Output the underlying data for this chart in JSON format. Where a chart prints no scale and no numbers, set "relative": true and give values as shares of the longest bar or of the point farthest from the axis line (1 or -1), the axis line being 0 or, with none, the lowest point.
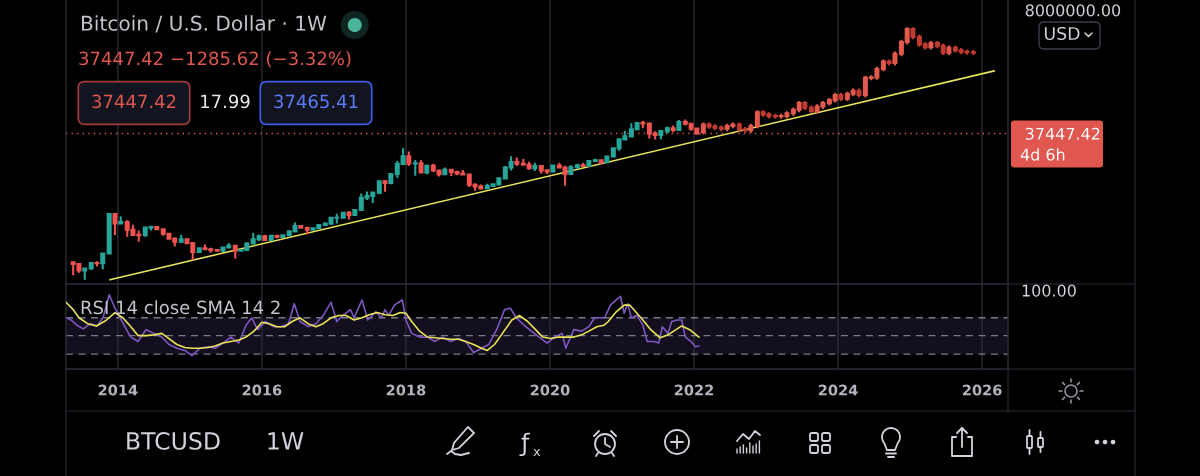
{
  "chart_data": [
    {
      "type": "candlestick",
      "title": "Bitcoin / U.S. Dollar · 1W",
      "subtitle": "37447.42 −1285.62 (−3.32%)",
      "series": [
        {
          "x": [
            2013.38,
            2013.46,
            2013.54,
            2013.63,
            2013.71,
            2013.79,
            2013.88,
            2013.96,
            2014.04,
            2014.13,
            2014.21,
            2014.29,
            2014.38,
            2014.46,
            2014.54,
            2014.63,
            2014.71,
            2014.79,
            2014.88,
            2014.96,
            2015.04,
            2015.13,
            2015.21,
            2015.29,
            2015.38,
            2015.46,
            2015.54,
            2015.63,
            2015.71,
            2015.79,
            2015.88,
            2015.96,
            2016.04,
            2016.13,
            2016.21,
            2016.29,
            2016.38,
            2016.46,
            2016.54,
            2016.63,
            2016.71,
            2016.79,
            2016.88,
            2016.96,
            2017.04,
            2017.13,
            2017.21,
            2017.29,
            2017.38,
            2017.46,
            2017.54,
            2017.63,
            2017.71,
            2017.79,
            2017.88,
            2017.96,
            2018.04,
            2018.13,
            2018.21,
            2018.29,
            2018.38,
            2018.46,
            2018.54,
            2018.63,
            2018.71,
            2018.79,
            2018.88,
            2018.96,
            2019.04,
            2019.13,
            2019.21,
            2019.29,
            2019.38,
            2019.46,
            2019.54,
            2019.63,
            2019.71,
            2019.79,
            2019.88,
            2019.96,
            2020.04,
            2020.13,
            2020.21,
            2020.29,
            2020.38,
            2020.46,
            2020.54,
            2020.63,
            2020.71,
            2020.79,
            2020.88,
            2020.96,
            2021.04,
            2021.13,
            2021.21,
            2021.29,
            2021.38,
            2021.46,
            2021.54,
            2021.63,
            2021.71,
            2021.79,
            2021.88,
            2021.96,
            2022.04
          ],
          "ohlc": [
            [
              139,
              140,
              79,
              129
            ],
            [
              129,
              130,
              88,
              97
            ],
            [
              97,
              111,
              65,
              106
            ],
            [
              106,
              139,
              100,
              135
            ],
            [
              135,
              145,
              115,
              133
            ],
            [
              133,
              211,
              102,
              204
            ],
            [
              204,
              1163,
              197,
              1130
            ],
            [
              1130,
              1163,
              455,
              754
            ],
            [
              754,
              1022,
              742,
              801
            ],
            [
              801,
              862,
              420,
              570
            ],
            [
              570,
              710,
              440,
              457
            ],
            [
              457,
              550,
              340,
              448
            ],
            [
              448,
              635,
              420,
              627
            ],
            [
              627,
              680,
              550,
              640
            ],
            [
              640,
              650,
              565,
              585
            ],
            [
              585,
              600,
              440,
              478
            ],
            [
              478,
              500,
              370,
              386
            ],
            [
              386,
              413,
              275,
              338
            ],
            [
              338,
              457,
              320,
              378
            ],
            [
              378,
              385,
              300,
              320
            ],
            [
              320,
              320,
              152,
              217
            ],
            [
              217,
              265,
              212,
              254
            ],
            [
              254,
              300,
              235,
              244
            ],
            [
              244,
              260,
              210,
              236
            ],
            [
              236,
              248,
              225,
              230
            ],
            [
              230,
              268,
              218,
              263
            ],
            [
              263,
              320,
              253,
              284
            ],
            [
              284,
              285,
              162,
              230
            ],
            [
              230,
              245,
              224,
              236
            ],
            [
              236,
              331,
              236,
              314
            ],
            [
              314,
              500,
              305,
              377
            ],
            [
              377,
              465,
              350,
              430
            ],
            [
              430,
              460,
              350,
              368
            ],
            [
              368,
              448,
              365,
              437
            ],
            [
              437,
              440,
              395,
              416
            ],
            [
              416,
              470,
              410,
              448
            ],
            [
              448,
              550,
              435,
              531
            ],
            [
              531,
              780,
              520,
              674
            ],
            [
              674,
              705,
              600,
              624
            ],
            [
              624,
              626,
              470,
              573
            ],
            [
              573,
              630,
              570,
              608
            ],
            [
              608,
              720,
              600,
              700
            ],
            [
              700,
              755,
              680,
              744
            ],
            [
              744,
              975,
              740,
              963
            ],
            [
              963,
              1150,
              750,
              965
            ],
            [
              965,
              1200,
              920,
              1190
            ],
            [
              1190,
              1290,
              890,
              1080
            ],
            [
              1080,
              1350,
              1060,
              1350
            ],
            [
              1350,
              2760,
              1340,
              2300
            ],
            [
              2300,
              3000,
              2080,
              2480
            ],
            [
              2480,
              2920,
              1830,
              2870
            ],
            [
              2870,
              4800,
              2680,
              4700
            ],
            [
              4700,
              4980,
              2970,
              4340
            ],
            [
              4340,
              6470,
              4110,
              6440
            ],
            [
              6440,
              11300,
              5500,
              10000
            ],
            [
              10000,
              19666,
              9900,
              13850
            ],
            [
              13850,
              17200,
              9100,
              10200
            ],
            [
              10200,
              11800,
              6000,
              10300
            ],
            [
              10300,
              11700,
              6600,
              6900
            ],
            [
              6900,
              9750,
              6400,
              9240
            ],
            [
              9240,
              10000,
              7040,
              7490
            ],
            [
              7490,
              7750,
              5760,
              6400
            ],
            [
              6400,
              8500,
              6070,
              7730
            ],
            [
              7730,
              7760,
              5880,
              7010
            ],
            [
              7010,
              7400,
              6100,
              6600
            ],
            [
              6600,
              7680,
              6200,
              6320
            ],
            [
              6320,
              6600,
              3650,
              4040
            ],
            [
              4040,
              4310,
              3122,
              3740
            ],
            [
              3740,
              4080,
              3330,
              3440
            ],
            [
              3440,
              4200,
              3370,
              3820
            ],
            [
              3820,
              4100,
              3750,
              4100
            ],
            [
              4100,
              5600,
              4050,
              5320
            ],
            [
              5320,
              9070,
              5300,
              8560
            ],
            [
              8560,
              13880,
              7500,
              10800
            ],
            [
              10800,
              13200,
              9100,
              10080
            ],
            [
              10080,
              12300,
              9400,
              9600
            ],
            [
              9600,
              10950,
              7730,
              8300
            ],
            [
              8300,
              10500,
              7300,
              9150
            ],
            [
              9150,
              9500,
              6520,
              7550
            ],
            [
              7550,
              7750,
              6430,
              7200
            ],
            [
              7200,
              9580,
              6850,
              9350
            ],
            [
              9350,
              10500,
              8450,
              8540
            ],
            [
              8540,
              9180,
              3850,
              6430
            ],
            [
              6430,
              9470,
              6150,
              8640
            ],
            [
              8640,
              10080,
              8120,
              9450
            ],
            [
              9450,
              10380,
              8900,
              9140
            ],
            [
              9140,
              11450,
              8990,
              11330
            ],
            [
              11330,
              12480,
              10950,
              11650
            ],
            [
              11650,
              12070,
              9880,
              10780
            ],
            [
              10780,
              14100,
              10400,
              13800
            ],
            [
              13800,
              19860,
              13200,
              19700
            ],
            [
              19700,
              29300,
              17600,
              28990
            ],
            [
              28990,
              41950,
              28800,
              33100
            ],
            [
              33100,
              58350,
              32300,
              45200
            ],
            [
              45200,
              61800,
              44950,
              58800
            ],
            [
              58800,
              64900,
              47000,
              57700
            ],
            [
              57700,
              59600,
              30000,
              37300
            ],
            [
              37300,
              41300,
              28800,
              35000
            ],
            [
              35000,
              42400,
              29300,
              41500
            ],
            [
              41500,
              50500,
              37300,
              47100
            ],
            [
              47100,
              52900,
              39600,
              43800
            ],
            [
              43800,
              67000,
              43300,
              61300
            ],
            [
              61300,
              69000,
              53200,
              57000
            ],
            [
              57000,
              59100,
              42000,
              46200
            ],
            [
              46200,
              47900,
              35500,
              37447.42
            ]
          ],
          "colors": [
            "#ef5350",
            "#ef5350",
            "#26a69a",
            "#26a69a",
            "#ef5350",
            "#26a69a",
            "#26a69a",
            "#ef5350",
            "#26a69a",
            "#ef5350",
            "#ef5350",
            "#ef5350",
            "#26a69a",
            "#26a69a",
            "#ef5350",
            "#ef5350",
            "#ef5350",
            "#ef5350",
            "#26a69a",
            "#ef5350",
            "#ef5350",
            "#26a69a",
            "#ef5350",
            "#ef5350",
            "#ef5350",
            "#26a69a",
            "#26a69a",
            "#ef5350",
            "#26a69a",
            "#26a69a",
            "#26a69a",
            "#26a69a",
            "#ef5350",
            "#26a69a",
            "#ef5350",
            "#26a69a",
            "#26a69a",
            "#26a69a",
            "#ef5350",
            "#ef5350",
            "#26a69a",
            "#26a69a",
            "#26a69a",
            "#26a69a",
            "#26a69a",
            "#26a69a",
            "#ef5350",
            "#26a69a",
            "#26a69a",
            "#26a69a",
            "#26a69a",
            "#26a69a",
            "#ef5350",
            "#26a69a",
            "#26a69a",
            "#26a69a",
            "#ef5350",
            "#26a69a",
            "#ef5350",
            "#26a69a",
            "#ef5350",
            "#ef5350",
            "#26a69a",
            "#ef5350",
            "#ef5350",
            "#ef5350",
            "#ef5350",
            "#ef5350",
            "#ef5350",
            "#26a69a",
            "#26a69a",
            "#26a69a",
            "#26a69a",
            "#26a69a",
            "#ef5350",
            "#ef5350",
            "#ef5350",
            "#26a69a",
            "#ef5350",
            "#ef5350",
            "#26a69a",
            "#ef5350",
            "#ef5350",
            "#26a69a",
            "#26a69a",
            "#ef5350",
            "#26a69a",
            "#26a69a",
            "#ef5350",
            "#26a69a",
            "#26a69a",
            "#26a69a",
            "#26a69a",
            "#26a69a",
            "#26a69a",
            "#ef5350",
            "#ef5350",
            "#ef5350",
            "#26a69a",
            "#26a69a",
            "#ef5350",
            "#26a69a",
            "#ef5350",
            "#ef5350",
            "#ef5350"
          ]
        },
        {
          "x": [
            2022.13,
            2022.21,
            2022.29,
            2022.38,
            2022.46,
            2022.54,
            2022.63,
            2022.71,
            2022.79,
            2022.88,
            2022.96,
            2023.04,
            2023.13,
            2023.21,
            2023.29,
            2023.38,
            2023.46,
            2023.54,
            2023.63,
            2023.71,
            2023.79,
            2023.88,
            2023.96,
            2024.04,
            2024.13,
            2024.21,
            2024.29,
            2024.38,
            2024.46,
            2024.54,
            2024.63,
            2024.71,
            2024.79,
            2024.88,
            2024.96,
            2025.04,
            2025.13,
            2025.21,
            2025.29,
            2025.38,
            2025.46,
            2025.54,
            2025.63,
            2025.71,
            2025.79,
            2025.88
          ],
          "ohlc": [
            [
              40000,
              60500,
              36000,
              55000
            ],
            [
              55000,
              60500,
              45900,
              51000
            ],
            [
              51000,
              56100,
              43200,
              48000
            ],
            [
              48000,
              52800,
              41400,
              46000
            ],
            [
              46000,
              57200,
              41400,
              52000
            ],
            [
              52000,
              60500,
              46800,
              55000
            ],
            [
              55000,
              60500,
              40500,
              45000
            ],
            [
              45000,
              49500,
              38700,
              43000
            ],
            [
              43000,
              57200,
              38700,
              52000
            ],
            [
              52000,
              103000,
              46800,
              94000
            ],
            [
              94000,
              103000,
              77400,
              86000
            ],
            [
              86000,
              94600,
              72000,
              80000
            ],
            [
              80000,
              88000,
              71100,
              79000
            ],
            [
              79000,
              88000,
              71100,
              80000
            ],
            [
              80000,
              99000,
              72000,
              90000
            ],
            [
              90000,
              116000,
              81000,
              105000
            ],
            [
              105000,
              154000,
              94500,
              140000
            ],
            [
              140000,
              154000,
              104000,
              115000
            ],
            [
              115000,
              127000,
              90000,
              100000
            ],
            [
              100000,
              133000,
              90000,
              121000
            ],
            [
              121000,
              154000,
              109000,
              140000
            ],
            [
              140000,
              176000,
              126000,
              160000
            ],
            [
              160000,
              220000,
              144000,
              200000
            ],
            [
              200000,
              220000,
              153000,
              170000
            ],
            [
              170000,
              231000,
              153000,
              210000
            ],
            [
              210000,
              264000,
              189000,
              240000
            ],
            [
              240000,
              264000,
              180000,
              200000
            ],
            [
              200000,
              462000,
              180000,
              420000
            ],
            [
              420000,
              473000,
              378000,
              430000
            ],
            [
              430000,
              682000,
              387000,
              620000
            ],
            [
              620000,
              935000,
              558000,
              850000
            ],
            [
              850000,
              935000,
              720000,
              800000
            ],
            [
              800000,
              1320000,
              720000,
              1200000
            ],
            [
              1200000,
              2200000,
              1080000,
              2000000
            ],
            [
              2000000,
              3800000,
              1800000,
              3500000
            ],
            [
              3500000,
              3800000,
              2250000,
              2500000
            ],
            [
              2500000,
              2750000,
              1620000,
              1800000
            ],
            [
              1800000,
              1980000,
              1440000,
              1600000
            ],
            [
              1600000,
              2090000,
              1440000,
              1900000
            ],
            [
              1900000,
              2090000,
              1530000,
              1700000
            ],
            [
              1700000,
              1870000,
              1130000,
              1250000
            ],
            [
              1250000,
              1710000,
              1130000,
              1550000
            ],
            [
              1550000,
              1710000,
              1260000,
              1400000
            ],
            [
              1400000,
              1540000,
              1170000,
              1300000
            ],
            [
              1300000,
              1430000,
              1150000,
              1280000
            ],
            [
              1280000,
              1410000,
              1130000,
              1260000
            ]
          ],
          "colors": [
            "#e25a4e",
            "#c23b31",
            "#c23b31",
            "#c23b31",
            "#e25a4e",
            "#e25a4e",
            "#c23b31",
            "#c23b31",
            "#e25a4e",
            "#e25a4e",
            "#c23b31",
            "#c23b31",
            "#c23b31",
            "#e25a4e",
            "#e25a4e",
            "#e25a4e",
            "#e25a4e",
            "#c23b31",
            "#c23b31",
            "#e25a4e",
            "#e25a4e",
            "#e25a4e",
            "#e25a4e",
            "#c23b31",
            "#e25a4e",
            "#e25a4e",
            "#c23b31",
            "#e25a4e",
            "#e25a4e",
            "#e25a4e",
            "#e25a4e",
            "#c23b31",
            "#e25a4e",
            "#e25a4e",
            "#e25a4e",
            "#c23b31",
            "#c23b31",
            "#c23b31",
            "#e25a4e",
            "#c23b31",
            "#c23b31",
            "#e25a4e",
            "#c23b31",
            "#c23b31",
            "#c23b31",
            "#c23b31"
          ]
        },
        {
          "type": "line",
          "x": [
            2013.89,
            2026.17
          ],
          "values": [
            65,
            570000
          ],
          "color": "#ebe35a"
        }
      ],
      "xlim": [
        2013.28,
        2026.36
      ],
      "xticks": [
        2014,
        2016,
        2018,
        2020,
        2022,
        2024,
        2026
      ],
      "ylim": [
        54,
        12400000
      ],
      "yticks": [
        {
          "value": 8000000,
          "label": "8000000.00"
        },
        37447.42
      ],
      "log": "y",
      "grid": "x",
      "tick_labels": "y",
      "ref_lines": [
        {
          "axis": "y",
          "value": 37447.42,
          "color": "#e0574f",
          "line_style": "dotted"
        }
      ],
      "annotations": [
        "37447.42",
        "17.99",
        "37465.41",
        "USD",
        "BTCUSD",
        "1W",
        "4d 6h"
      ]
    },
    {
      "type": "line",
      "title": "RSI 14 close SMA 14 2",
      "relative": true,
      "series": [
        {
          "x": [
            2013.29,
            2013.35,
            2013.43,
            2013.52,
            2013.62,
            2013.72,
            2013.8,
            2013.88,
            2013.96,
            2014.12,
            2014.18,
            2014.28,
            2014.39,
            2014.5,
            2014.61,
            2014.71,
            2014.82,
            2014.93,
            2015.03,
            2015.14,
            2015.25,
            2015.35,
            2015.46,
            2015.57,
            2015.68,
            2015.78,
            2015.86,
            2015.94,
            2016.05,
            2016.16,
            2016.26,
            2016.37,
            2016.45,
            2016.53,
            2016.64,
            2016.75,
            2016.85,
            2016.96,
            2017.04,
            2017.12,
            2017.23,
            2017.28,
            2017.39,
            2017.47,
            2017.58,
            2017.66,
            2017.71,
            2017.76,
            2017.84,
            2017.95,
            2018.0,
            2018.08,
            2018.19,
            2018.3,
            2018.4,
            2018.51,
            2018.62,
            2018.73,
            2018.83,
            2018.94,
            2019.05,
            2019.15,
            2019.26,
            2019.37,
            2019.45,
            2019.53,
            2019.64,
            2019.74,
            2019.85,
            2019.96,
            2020.06,
            2020.17,
            2020.22,
            2020.33,
            2020.44,
            2020.54,
            2020.62,
            2020.76,
            2020.84,
            2020.92,
            2020.98,
            2021.03,
            2021.08,
            2021.13,
            2021.21,
            2021.29,
            2021.35,
            2021.45,
            2021.51,
            2021.56,
            2021.64,
            2021.69,
            2021.77,
            2021.83,
            2021.88,
            2021.96,
            2022.02,
            2022.07
          ],
          "values": [
            0.69,
            0.66,
            0.59,
            0.54,
            0.61,
            0.58,
            0.71,
            1,
            0.82,
            0.53,
            0.43,
            0.37,
            0.53,
            0.48,
            0.43,
            0.33,
            0.28,
            0.25,
            0.18,
            0.28,
            0.3,
            0.28,
            0.35,
            0.43,
            0.35,
            0.59,
            0.69,
            0.53,
            0.64,
            0.57,
            0.57,
            0.61,
            0.88,
            0.64,
            0.57,
            0.61,
            0.72,
            0.9,
            0.64,
            0.72,
            0.8,
            0.69,
            0.93,
            0.66,
            0.77,
            0.69,
            0.8,
            0.72,
            0.86,
            0.93,
            0.66,
            0.48,
            0.43,
            0.43,
            0.37,
            0.43,
            0.37,
            0.41,
            0.37,
            0.22,
            0.28,
            0.33,
            0.53,
            0.8,
            0.82,
            0.69,
            0.59,
            0.51,
            0.43,
            0.35,
            0.43,
            0.48,
            0.28,
            0.53,
            0.51,
            0.57,
            0.69,
            0.69,
            0.86,
            0.93,
            0.98,
            0.75,
            0.88,
            0.69,
            0.72,
            0.59,
            0.37,
            0.37,
            0.35,
            0.57,
            0.48,
            0.64,
            0.66,
            0.66,
            0.43,
            0.37,
            0.3,
            0.31
          ],
          "color": "#7e57c2"
        },
        {
          "x": [
            2013.28,
            2013.38,
            2013.46,
            2013.58,
            2013.7,
            2013.83,
            2013.96,
            2014.07,
            2014.18,
            2014.28,
            2014.39,
            2014.5,
            2014.61,
            2014.71,
            2014.82,
            2014.93,
            2015.03,
            2015.14,
            2015.25,
            2015.35,
            2015.46,
            2015.57,
            2015.68,
            2015.78,
            2015.89,
            2016.0,
            2016.1,
            2016.21,
            2016.32,
            2016.42,
            2016.53,
            2016.64,
            2016.75,
            2016.85,
            2016.96,
            2017.07,
            2017.17,
            2017.28,
            2017.39,
            2017.49,
            2017.6,
            2017.71,
            2017.82,
            2017.92,
            2018.0,
            2018.08,
            2018.19,
            2018.3,
            2018.4,
            2018.51,
            2018.62,
            2018.73,
            2018.83,
            2018.94,
            2019.05,
            2019.13,
            2019.23,
            2019.34,
            2019.47,
            2019.58,
            2019.69,
            2019.8,
            2019.9,
            2020.01,
            2020.12,
            2020.22,
            2020.33,
            2020.44,
            2020.54,
            2020.65,
            2020.75,
            2020.81,
            2020.92,
            2021.03,
            2021.11,
            2021.19,
            2021.29,
            2021.4,
            2021.53,
            2021.64,
            2021.75,
            2021.83,
            2021.94,
            2022.07
          ],
          "values": [
            0.9,
            0.8,
            0.69,
            0.61,
            0.58,
            0.65,
            0.76,
            0.69,
            0.57,
            0.45,
            0.45,
            0.46,
            0.48,
            0.41,
            0.33,
            0.29,
            0.28,
            0.28,
            0.29,
            0.31,
            0.35,
            0.37,
            0.39,
            0.43,
            0.51,
            0.63,
            0.61,
            0.57,
            0.57,
            0.64,
            0.69,
            0.61,
            0.57,
            0.61,
            0.69,
            0.72,
            0.72,
            0.66,
            0.69,
            0.73,
            0.76,
            0.73,
            0.72,
            0.76,
            0.75,
            0.64,
            0.51,
            0.43,
            0.42,
            0.41,
            0.4,
            0.4,
            0.37,
            0.33,
            0.28,
            0.25,
            0.33,
            0.48,
            0.66,
            0.72,
            0.64,
            0.53,
            0.43,
            0.41,
            0.43,
            0.43,
            0.43,
            0.46,
            0.51,
            0.57,
            0.59,
            0.64,
            0.77,
            0.86,
            0.86,
            0.77,
            0.66,
            0.53,
            0.42,
            0.46,
            0.53,
            0.58,
            0.53,
            0.43
          ],
          "color": "#ebe35a"
        }
      ],
      "xlim": [
        2013.28,
        2026.36
      ],
      "xticks": [
        2014,
        2016,
        2018,
        2020,
        2022,
        2024,
        2026
      ],
      "grid": "x",
      "bands": [
        {
          "axis": "y",
          "from": 0.2,
          "to": 0.69,
          "color": "#130f1e"
        }
      ],
      "ref_lines": [
        {
          "axis": "y",
          "value": 0.69,
          "color": "#787b86",
          "line_style": "dashed"
        },
        {
          "axis": "y",
          "value": 0.45,
          "color": "#787b86",
          "line_style": "dashed"
        },
        {
          "axis": "y",
          "value": 0.2,
          "color": "#787b86",
          "line_style": "dashed"
        }
      ],
      "annotations": [
        "100.00"
      ]
    }
  ]
}
